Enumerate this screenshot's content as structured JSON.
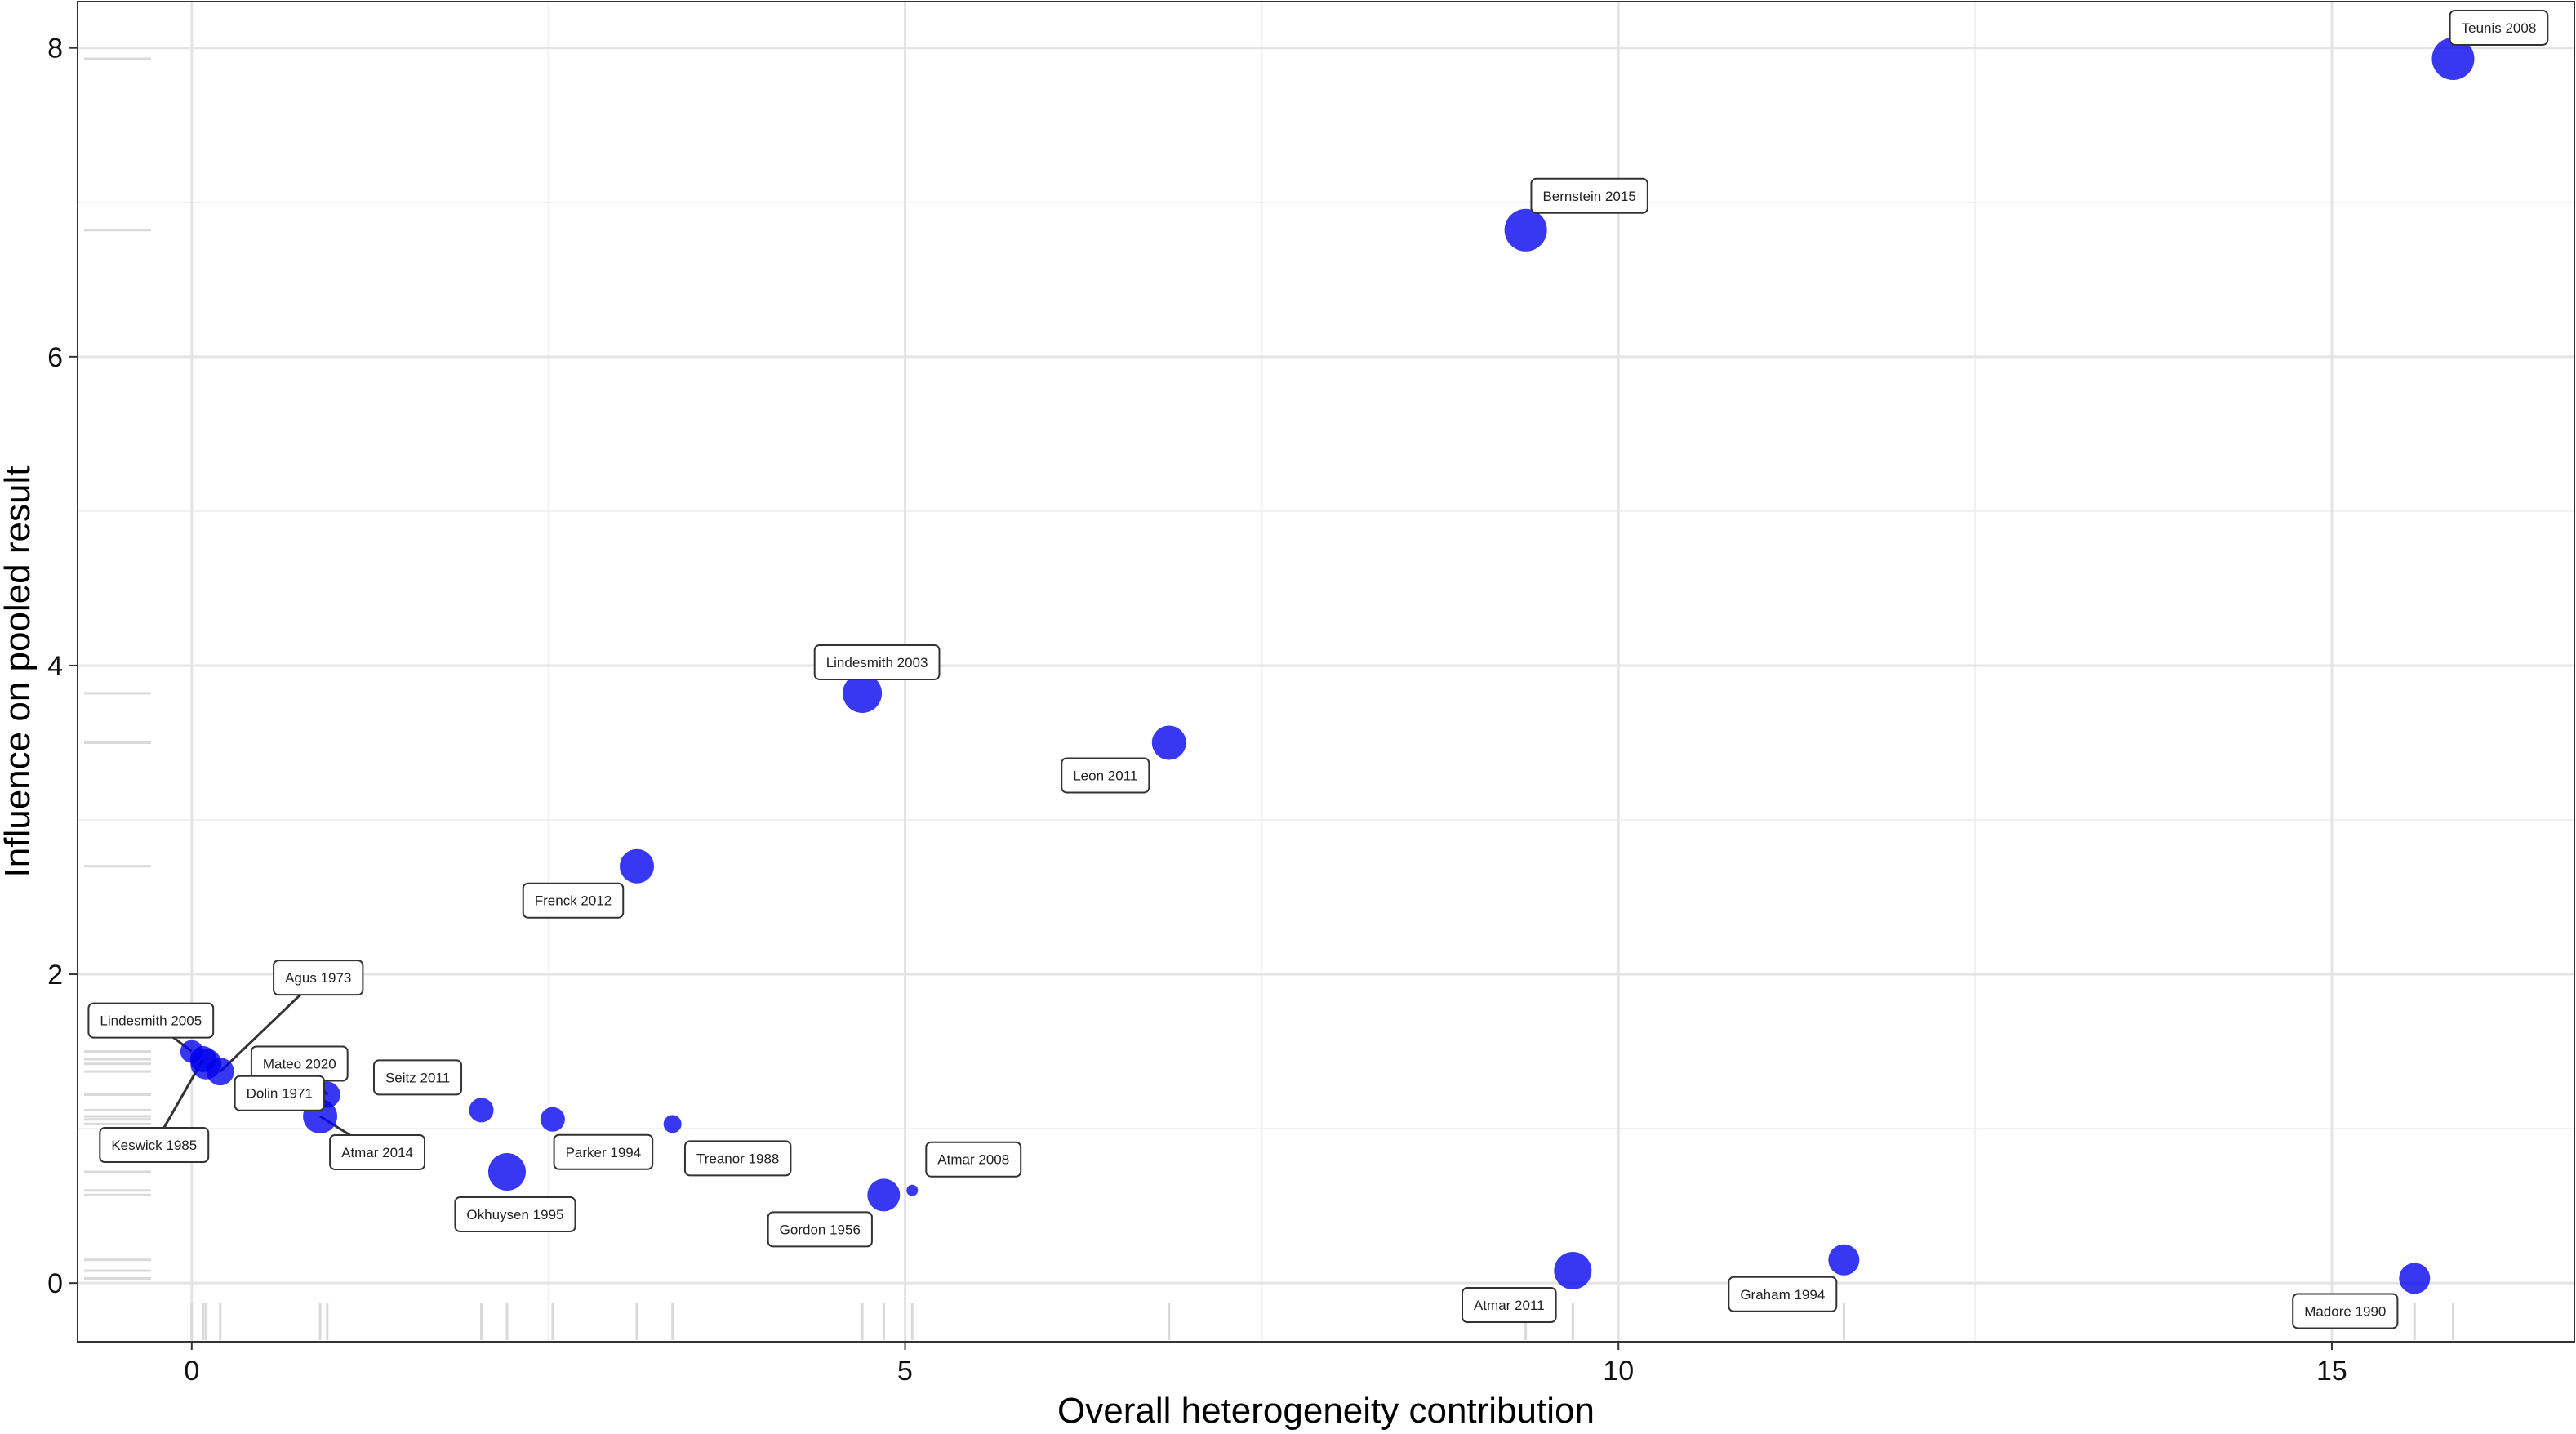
{
  "chart_data": {
    "type": "scatter",
    "title": "",
    "xlabel": "Overall heterogeneity contribution",
    "ylabel": "Influence on pooled result",
    "xlim": [
      -0.8,
      16.7
    ],
    "ylim": [
      -0.38,
      8.3
    ],
    "x_ticks": [
      0,
      5,
      10,
      15
    ],
    "y_ticks": [
      0,
      2,
      4,
      6,
      8
    ],
    "grid": true,
    "point_color": "#0000ee",
    "rug": true,
    "points": [
      {
        "label": "Teunis 2008",
        "x": 15.85,
        "y": 7.93,
        "size": 26
      },
      {
        "label": "Bernstein 2015",
        "x": 9.35,
        "y": 6.82,
        "size": 26
      },
      {
        "label": "Lindesmith 2003",
        "x": 4.7,
        "y": 3.82,
        "size": 24
      },
      {
        "label": "Leon 2011",
        "x": 6.85,
        "y": 3.5,
        "size": 21
      },
      {
        "label": "Frenck 2012",
        "x": 3.12,
        "y": 2.7,
        "size": 21
      },
      {
        "label": "Agus 1973",
        "x": 0.2,
        "y": 1.37,
        "size": 17
      },
      {
        "label": "Lindesmith 2005",
        "x": 0.0,
        "y": 1.5,
        "size": 14
      },
      {
        "label": "Mateo 2020",
        "x": 0.95,
        "y": 1.22,
        "size": 16
      },
      {
        "label": "Dolin 1971",
        "x": 0.1,
        "y": 1.42,
        "size": 19
      },
      {
        "label": "Keswick 1985",
        "x": 0.08,
        "y": 1.45,
        "size": 16
      },
      {
        "label": "Seitz 2011",
        "x": 2.03,
        "y": 1.12,
        "size": 15
      },
      {
        "label": "Atmar 2014",
        "x": 0.9,
        "y": 1.08,
        "size": 21
      },
      {
        "label": "Parker 1994",
        "x": 2.53,
        "y": 1.06,
        "size": 15
      },
      {
        "label": "Treanor 1988",
        "x": 3.37,
        "y": 1.03,
        "size": 11
      },
      {
        "label": "Okhuysen 1995",
        "x": 2.21,
        "y": 0.72,
        "size": 23
      },
      {
        "label": "Atmar 2008",
        "x": 5.05,
        "y": 0.6,
        "size": 7
      },
      {
        "label": "Gordon 1956",
        "x": 4.85,
        "y": 0.57,
        "size": 20
      },
      {
        "label": "Atmar 2011",
        "x": 9.68,
        "y": 0.08,
        "size": 23
      },
      {
        "label": "Graham 1994",
        "x": 11.58,
        "y": 0.15,
        "size": 19
      },
      {
        "label": "Madore 1990",
        "x": 15.58,
        "y": 0.03,
        "size": 19
      }
    ]
  }
}
